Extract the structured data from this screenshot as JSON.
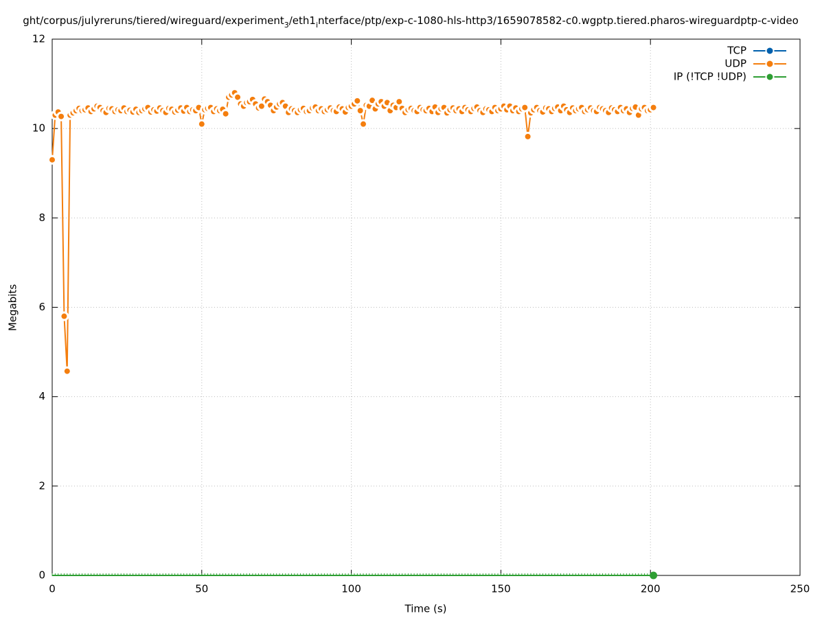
{
  "chart_data": {
    "type": "line",
    "title_parts": [
      "ght/corpus/julyreruns/tiered/wireguard/experiment",
      "3",
      "/eth1",
      "i",
      "nterface/ptp/exp-c-1080-hls-http3/1659078582-c0.wgptp.tiered.pharos-wireguardptp-c-video"
    ],
    "xlabel": "Time (s)",
    "ylabel": "Megabits",
    "xlim": [
      0,
      250
    ],
    "xticks": [
      0,
      50,
      100,
      150,
      200,
      250
    ],
    "ylim": [
      0,
      12
    ],
    "yticks": [
      0,
      2,
      4,
      6,
      8,
      10,
      12
    ],
    "grid": true,
    "legend": "top-right",
    "x": [
      0,
      1,
      2,
      3,
      4,
      5,
      6,
      7,
      8,
      9,
      10,
      11,
      12,
      13,
      14,
      15,
      16,
      17,
      18,
      19,
      20,
      21,
      22,
      23,
      24,
      25,
      26,
      27,
      28,
      29,
      30,
      31,
      32,
      33,
      34,
      35,
      36,
      37,
      38,
      39,
      40,
      41,
      42,
      43,
      44,
      45,
      46,
      47,
      48,
      49,
      50,
      51,
      52,
      53,
      54,
      55,
      56,
      57,
      58,
      59,
      60,
      61,
      62,
      63,
      64,
      65,
      66,
      67,
      68,
      69,
      70,
      71,
      72,
      73,
      74,
      75,
      76,
      77,
      78,
      79,
      80,
      81,
      82,
      83,
      84,
      85,
      86,
      87,
      88,
      89,
      90,
      91,
      92,
      93,
      94,
      95,
      96,
      97,
      98,
      99,
      100,
      101,
      102,
      103,
      104,
      105,
      106,
      107,
      108,
      109,
      110,
      111,
      112,
      113,
      114,
      115,
      116,
      117,
      118,
      119,
      120,
      121,
      122,
      123,
      124,
      125,
      126,
      127,
      128,
      129,
      130,
      131,
      132,
      133,
      134,
      135,
      136,
      137,
      138,
      139,
      140,
      141,
      142,
      143,
      144,
      145,
      146,
      147,
      148,
      149,
      150,
      151,
      152,
      153,
      154,
      155,
      156,
      157,
      158,
      159,
      160,
      161,
      162,
      163,
      164,
      165,
      166,
      167,
      168,
      169,
      170,
      171,
      172,
      173,
      174,
      175,
      176,
      177,
      178,
      179,
      180,
      181,
      182,
      183,
      184,
      185,
      186,
      187,
      188,
      189,
      190,
      191,
      192,
      193,
      194,
      195,
      196,
      197,
      198,
      199,
      200,
      201
    ],
    "series": [
      {
        "name": "TCP",
        "color": "#0060ad",
        "values": [
          null,
          null,
          null,
          null,
          null,
          null,
          null,
          null,
          null,
          null,
          null,
          null,
          null,
          null,
          null,
          null,
          null,
          null,
          null,
          null,
          null,
          null,
          null,
          null,
          null,
          null,
          null,
          null,
          null,
          null,
          null,
          null,
          null,
          null,
          null,
          null,
          null,
          null,
          null,
          null,
          null,
          null,
          null,
          null,
          null,
          null,
          null,
          null,
          null,
          null,
          null,
          null,
          null,
          null,
          null,
          null,
          null,
          null,
          null,
          null,
          null,
          null,
          null,
          null,
          null,
          null,
          null,
          null,
          null,
          null,
          null,
          null,
          null,
          null,
          null,
          null,
          null,
          null,
          null,
          null,
          null,
          null,
          null,
          null,
          null,
          null,
          null,
          null,
          null,
          null,
          null,
          null,
          null,
          null,
          null,
          null,
          null,
          null,
          null,
          null,
          null,
          null,
          null,
          null,
          null,
          null,
          null,
          null,
          null,
          null,
          null,
          null,
          null,
          null,
          null,
          null,
          null,
          null,
          null,
          null,
          null,
          null,
          null,
          null,
          null,
          null,
          null,
          null,
          null,
          null,
          null,
          null,
          null,
          null,
          null,
          null,
          null,
          null,
          null,
          null,
          null,
          null,
          null,
          null,
          null,
          null,
          null,
          null,
          null,
          null,
          null,
          null,
          null,
          null,
          null,
          null,
          null,
          null,
          null,
          null,
          null,
          null,
          null,
          null,
          null,
          null,
          null,
          null,
          null,
          null,
          null,
          null,
          null,
          null,
          null,
          null,
          null,
          null,
          null,
          null,
          null,
          null,
          null,
          null,
          null,
          null,
          null,
          null,
          null,
          null,
          null,
          null,
          null,
          null,
          null,
          null,
          null,
          null,
          null,
          null,
          null,
          null
        ]
      },
      {
        "name": "UDP",
        "color": "#f47e0e",
        "values": [
          9.3,
          10.3,
          10.37,
          10.27,
          5.8,
          4.57,
          10.3,
          10.35,
          10.4,
          10.45,
          10.4,
          10.42,
          10.46,
          10.38,
          10.44,
          10.5,
          10.47,
          10.4,
          10.36,
          10.45,
          10.44,
          10.38,
          10.42,
          10.4,
          10.46,
          10.38,
          10.41,
          10.37,
          10.43,
          10.36,
          10.4,
          10.44,
          10.47,
          10.37,
          10.42,
          10.39,
          10.46,
          10.4,
          10.36,
          10.45,
          10.43,
          10.37,
          10.41,
          10.46,
          10.39,
          10.47,
          10.38,
          10.42,
          10.4,
          10.47,
          10.1,
          10.42,
          10.45,
          10.47,
          10.38,
          10.44,
          10.4,
          10.43,
          10.33,
          10.7,
          10.75,
          10.8,
          10.7,
          10.55,
          10.5,
          10.58,
          10.6,
          10.65,
          10.55,
          10.46,
          10.5,
          10.66,
          10.6,
          10.52,
          10.4,
          10.48,
          10.55,
          10.58,
          10.5,
          10.36,
          10.44,
          10.4,
          10.36,
          10.42,
          10.45,
          10.38,
          10.4,
          10.46,
          10.48,
          10.4,
          10.44,
          10.38,
          10.42,
          10.46,
          10.4,
          10.38,
          10.48,
          10.44,
          10.37,
          10.47,
          10.5,
          10.55,
          10.62,
          10.4,
          10.1,
          10.52,
          10.5,
          10.63,
          10.44,
          10.55,
          10.6,
          10.5,
          10.58,
          10.4,
          10.52,
          10.47,
          10.6,
          10.45,
          10.36,
          10.42,
          10.45,
          10.4,
          10.38,
          10.47,
          10.42,
          10.4,
          10.45,
          10.38,
          10.48,
          10.36,
          10.44,
          10.47,
          10.35,
          10.42,
          10.46,
          10.4,
          10.44,
          10.38,
          10.47,
          10.42,
          10.38,
          10.45,
          10.48,
          10.4,
          10.36,
          10.44,
          10.42,
          10.38,
          10.47,
          10.4,
          10.44,
          10.5,
          10.42,
          10.5,
          10.4,
          10.46,
          10.38,
          10.44,
          10.47,
          9.82,
          10.35,
          10.42,
          10.47,
          10.4,
          10.37,
          10.46,
          10.44,
          10.38,
          10.45,
          10.48,
          10.4,
          10.5,
          10.42,
          10.36,
          10.46,
          10.4,
          10.44,
          10.47,
          10.38,
          10.42,
          10.46,
          10.4,
          10.38,
          10.47,
          10.44,
          10.4,
          10.36,
          10.46,
          10.42,
          10.38,
          10.47,
          10.4,
          10.44,
          10.36,
          10.45,
          10.48,
          10.3,
          10.44,
          10.47,
          10.4,
          10.42,
          10.47
        ]
      },
      {
        "name": "IP (!TCP  !UDP)",
        "color": "#2e9e33",
        "values": [
          0,
          0,
          0,
          0,
          0,
          0,
          0,
          0,
          0,
          0,
          0,
          0,
          0,
          0,
          0,
          0,
          0,
          0,
          0,
          0,
          0,
          0,
          0,
          0,
          0,
          0,
          0,
          0,
          0,
          0,
          0,
          0,
          0,
          0,
          0,
          0,
          0,
          0,
          0,
          0,
          0,
          0,
          0,
          0,
          0,
          0,
          0,
          0,
          0,
          0,
          0,
          0,
          0,
          0,
          0,
          0,
          0,
          0,
          0,
          0,
          0,
          0,
          0,
          0,
          0,
          0,
          0,
          0,
          0,
          0,
          0,
          0,
          0,
          0,
          0,
          0,
          0,
          0,
          0,
          0,
          0,
          0,
          0,
          0,
          0,
          0,
          0,
          0,
          0,
          0,
          0,
          0,
          0,
          0,
          0,
          0,
          0,
          0,
          0,
          0,
          0,
          0,
          0,
          0,
          0,
          0,
          0,
          0,
          0,
          0,
          0,
          0,
          0,
          0,
          0,
          0,
          0,
          0,
          0,
          0,
          0,
          0,
          0,
          0,
          0,
          0,
          0,
          0,
          0,
          0,
          0,
          0,
          0,
          0,
          0,
          0,
          0,
          0,
          0,
          0,
          0,
          0,
          0,
          0,
          0,
          0,
          0,
          0,
          0,
          0,
          0,
          0,
          0,
          0,
          0,
          0,
          0,
          0,
          0,
          0,
          0,
          0,
          0,
          0,
          0,
          0,
          0,
          0,
          0,
          0,
          0,
          0,
          0,
          0,
          0,
          0,
          0,
          0,
          0,
          0,
          0,
          0,
          0,
          0,
          0,
          0,
          0,
          0,
          0,
          0,
          0,
          0,
          0,
          0,
          0,
          0,
          0,
          0,
          0,
          0,
          0,
          0
        ]
      }
    ]
  }
}
